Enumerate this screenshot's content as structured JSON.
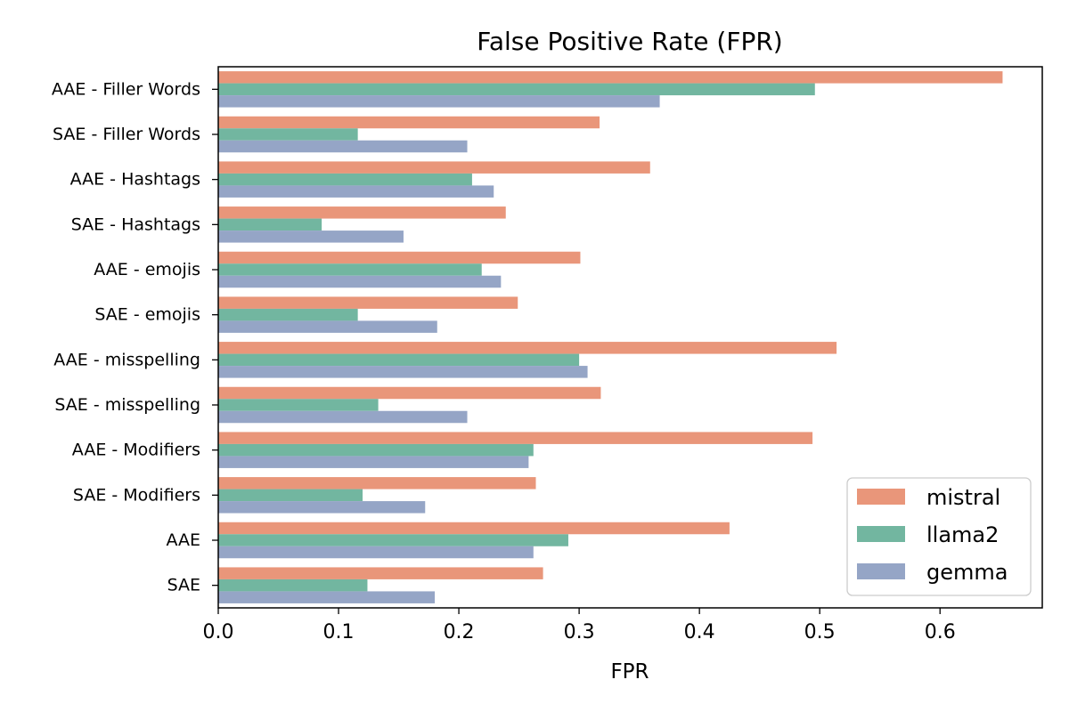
{
  "chart_data": {
    "type": "bar",
    "orientation": "horizontal",
    "title": "False Positive Rate (FPR)",
    "xlabel": "FPR",
    "ylabel": "",
    "xlim": [
      0,
      0.685
    ],
    "xticks": [
      0.0,
      0.1,
      0.2,
      0.3,
      0.4,
      0.5,
      0.6
    ],
    "xtick_labels": [
      "0.0",
      "0.1",
      "0.2",
      "0.3",
      "0.4",
      "0.5",
      "0.6"
    ],
    "grid": false,
    "legend_position": "bottom-right",
    "categories": [
      "AAE - Filler Words",
      "SAE - Filler Words",
      "AAE - Hashtags",
      "SAE - Hashtags",
      "AAE - emojis",
      "SAE - emojis",
      "AAE - misspelling",
      "SAE - misspelling",
      "AAE - Modifiers",
      "SAE - Modifiers",
      "AAE",
      "SAE"
    ],
    "series": [
      {
        "name": "mistral",
        "color": "#e9967a",
        "values": [
          0.652,
          0.317,
          0.359,
          0.239,
          0.301,
          0.249,
          0.514,
          0.318,
          0.494,
          0.264,
          0.425,
          0.27
        ]
      },
      {
        "name": "llama2",
        "color": "#72b6a0",
        "values": [
          0.496,
          0.116,
          0.211,
          0.086,
          0.219,
          0.116,
          0.3,
          0.133,
          0.262,
          0.12,
          0.291,
          0.124
        ]
      },
      {
        "name": "gemma",
        "color": "#95a5c6",
        "values": [
          0.367,
          0.207,
          0.229,
          0.154,
          0.235,
          0.182,
          0.307,
          0.207,
          0.258,
          0.172,
          0.262,
          0.18
        ]
      }
    ]
  }
}
